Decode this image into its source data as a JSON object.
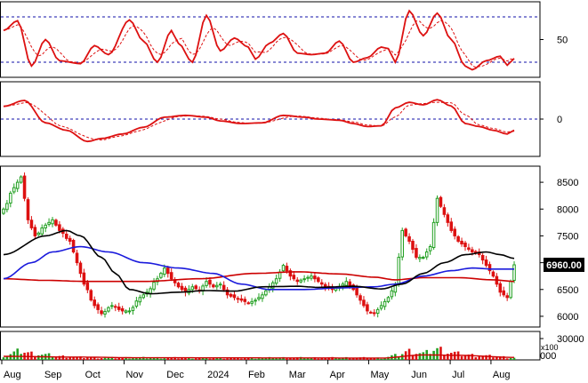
{
  "chart_data": {
    "type": "candlestick",
    "panels": [
      {
        "id": "oscillator",
        "ylim": [
          0,
          100
        ],
        "yticks": [
          {
            "v": 50,
            "label": "50"
          }
        ],
        "reference_lines": [
          80,
          20
        ]
      },
      {
        "id": "momentum",
        "ylim": [
          -100,
          100
        ],
        "yticks": [
          {
            "v": 0,
            "label": "0"
          }
        ],
        "reference_lines": [
          0
        ]
      },
      {
        "id": "price",
        "ylim": [
          5800,
          8800
        ],
        "yticks": [
          {
            "v": 8500,
            "label": "8500"
          },
          {
            "v": 8000,
            "label": "8000"
          },
          {
            "v": 7500,
            "label": "7500"
          },
          {
            "v": 7000,
            "label": "7000"
          },
          {
            "v": 6500,
            "label": "6500"
          },
          {
            "v": 6000,
            "label": "6000"
          }
        ],
        "last_price": "6960.00"
      },
      {
        "id": "volume",
        "ylim": [
          0,
          40000
        ],
        "yticks": [
          {
            "v": 30000,
            "label": "30000"
          }
        ],
        "unit_label": "x100",
        "zero_label": "000"
      }
    ],
    "x_labels": [
      "Aug",
      "Sep",
      "Oct",
      "Nov",
      "Dec",
      "2024",
      "Feb",
      "Mar",
      "Apr",
      "May",
      "Jun",
      "Jul",
      "Aug"
    ],
    "oscillator_anchors": [
      [
        0,
        62
      ],
      [
        4,
        75
      ],
      [
        8,
        15
      ],
      [
        12,
        50
      ],
      [
        16,
        22
      ],
      [
        22,
        18
      ],
      [
        26,
        42
      ],
      [
        30,
        30
      ],
      [
        36,
        76
      ],
      [
        40,
        48
      ],
      [
        44,
        20
      ],
      [
        48,
        62
      ],
      [
        50,
        45
      ],
      [
        54,
        20
      ],
      [
        58,
        82
      ],
      [
        62,
        35
      ],
      [
        66,
        52
      ],
      [
        70,
        40
      ],
      [
        72,
        24
      ],
      [
        76,
        45
      ],
      [
        80,
        58
      ],
      [
        84,
        32
      ],
      [
        88,
        30
      ],
      [
        92,
        32
      ],
      [
        96,
        48
      ],
      [
        100,
        20
      ],
      [
        104,
        26
      ],
      [
        108,
        40
      ],
      [
        110,
        38
      ],
      [
        112,
        20
      ],
      [
        116,
        88
      ],
      [
        120,
        55
      ],
      [
        124,
        85
      ],
      [
        128,
        50
      ],
      [
        132,
        15
      ],
      [
        134,
        10
      ],
      [
        138,
        22
      ],
      [
        142,
        28
      ],
      [
        144,
        16
      ],
      [
        146,
        25
      ]
    ],
    "momentum_anchors": [
      [
        0,
        34
      ],
      [
        6,
        50
      ],
      [
        12,
        -10
      ],
      [
        18,
        -30
      ],
      [
        24,
        -60
      ],
      [
        28,
        -52
      ],
      [
        34,
        -40
      ],
      [
        40,
        -22
      ],
      [
        46,
        5
      ],
      [
        52,
        10
      ],
      [
        58,
        5
      ],
      [
        62,
        -5
      ],
      [
        68,
        -12
      ],
      [
        74,
        -10
      ],
      [
        80,
        10
      ],
      [
        86,
        5
      ],
      [
        90,
        0
      ],
      [
        96,
        -3
      ],
      [
        100,
        -12
      ],
      [
        104,
        -20
      ],
      [
        108,
        -18
      ],
      [
        112,
        30
      ],
      [
        116,
        45
      ],
      [
        120,
        38
      ],
      [
        124,
        52
      ],
      [
        128,
        35
      ],
      [
        132,
        -12
      ],
      [
        136,
        -20
      ],
      [
        140,
        -30
      ],
      [
        144,
        -40
      ],
      [
        146,
        -30
      ]
    ],
    "price_anchors": [
      [
        0,
        8000
      ],
      [
        3,
        8400
      ],
      [
        5,
        8600
      ],
      [
        7,
        7800
      ],
      [
        9,
        7500
      ],
      [
        12,
        7700
      ],
      [
        14,
        7800
      ],
      [
        16,
        7600
      ],
      [
        19,
        7400
      ],
      [
        21,
        7000
      ],
      [
        23,
        6600
      ],
      [
        26,
        6200
      ],
      [
        28,
        6050
      ],
      [
        31,
        6200
      ],
      [
        34,
        6100
      ],
      [
        36,
        6100
      ],
      [
        39,
        6350
      ],
      [
        41,
        6450
      ],
      [
        44,
        6700
      ],
      [
        46,
        6900
      ],
      [
        48,
        6700
      ],
      [
        50,
        6550
      ],
      [
        52,
        6450
      ],
      [
        54,
        6550
      ],
      [
        56,
        6480
      ],
      [
        58,
        6650
      ],
      [
        60,
        6550
      ],
      [
        62,
        6600
      ],
      [
        64,
        6400
      ],
      [
        66,
        6350
      ],
      [
        68,
        6300
      ],
      [
        70,
        6250
      ],
      [
        72,
        6300
      ],
      [
        74,
        6400
      ],
      [
        76,
        6550
      ],
      [
        78,
        6700
      ],
      [
        80,
        6950
      ],
      [
        82,
        6750
      ],
      [
        84,
        6650
      ],
      [
        86,
        6700
      ],
      [
        88,
        6750
      ],
      [
        90,
        6650
      ],
      [
        92,
        6550
      ],
      [
        94,
        6500
      ],
      [
        96,
        6550
      ],
      [
        98,
        6650
      ],
      [
        100,
        6500
      ],
      [
        102,
        6300
      ],
      [
        104,
        6100
      ],
      [
        106,
        6050
      ],
      [
        108,
        6200
      ],
      [
        110,
        6350
      ],
      [
        112,
        6600
      ],
      [
        114,
        7600
      ],
      [
        116,
        7400
      ],
      [
        118,
        7100
      ],
      [
        120,
        7100
      ],
      [
        122,
        7300
      ],
      [
        124,
        8200
      ],
      [
        126,
        7900
      ],
      [
        128,
        7600
      ],
      [
        130,
        7400
      ],
      [
        132,
        7300
      ],
      [
        134,
        7200
      ],
      [
        136,
        7150
      ],
      [
        138,
        6950
      ],
      [
        140,
        6750
      ],
      [
        142,
        6450
      ],
      [
        144,
        6350
      ],
      [
        146,
        6960
      ]
    ],
    "ma_black": [
      [
        0,
        7150
      ],
      [
        12,
        7500
      ],
      [
        18,
        7600
      ],
      [
        22,
        7500
      ],
      [
        28,
        7100
      ],
      [
        32,
        6800
      ],
      [
        36,
        6500
      ],
      [
        42,
        6420
      ],
      [
        50,
        6450
      ],
      [
        58,
        6480
      ],
      [
        66,
        6470
      ],
      [
        74,
        6550
      ],
      [
        84,
        6560
      ],
      [
        90,
        6540
      ],
      [
        100,
        6560
      ],
      [
        108,
        6510
      ],
      [
        114,
        6600
      ],
      [
        120,
        6800
      ],
      [
        126,
        7000
      ],
      [
        132,
        7150
      ],
      [
        138,
        7200
      ],
      [
        142,
        7150
      ],
      [
        146,
        7080
      ]
    ],
    "ma_blue": [
      [
        0,
        6700
      ],
      [
        8,
        7000
      ],
      [
        14,
        7200
      ],
      [
        22,
        7300
      ],
      [
        30,
        7200
      ],
      [
        40,
        7000
      ],
      [
        50,
        6900
      ],
      [
        60,
        6800
      ],
      [
        68,
        6600
      ],
      [
        76,
        6500
      ],
      [
        86,
        6500
      ],
      [
        96,
        6530
      ],
      [
        106,
        6550
      ],
      [
        112,
        6600
      ],
      [
        120,
        6750
      ],
      [
        128,
        6850
      ],
      [
        134,
        6900
      ],
      [
        140,
        6880
      ],
      [
        146,
        6880
      ]
    ],
    "ma_red": [
      [
        0,
        6700
      ],
      [
        12,
        6670
      ],
      [
        24,
        6650
      ],
      [
        40,
        6650
      ],
      [
        56,
        6700
      ],
      [
        72,
        6800
      ],
      [
        84,
        6830
      ],
      [
        96,
        6790
      ],
      [
        106,
        6730
      ],
      [
        112,
        6680
      ],
      [
        120,
        6720
      ],
      [
        130,
        6720
      ],
      [
        140,
        6680
      ],
      [
        146,
        6650
      ]
    ],
    "volume_anchors": [
      [
        0,
        6000
      ],
      [
        5,
        12000
      ],
      [
        8,
        9000
      ],
      [
        12,
        7000
      ],
      [
        16,
        5000
      ],
      [
        22,
        3500
      ],
      [
        30,
        3000
      ],
      [
        40,
        3000
      ],
      [
        50,
        2800
      ],
      [
        60,
        2500
      ],
      [
        70,
        2500
      ],
      [
        80,
        3000
      ],
      [
        90,
        2800
      ],
      [
        100,
        3000
      ],
      [
        108,
        2500
      ],
      [
        112,
        6000
      ],
      [
        116,
        12000
      ],
      [
        120,
        9000
      ],
      [
        124,
        15000
      ],
      [
        128,
        10000
      ],
      [
        132,
        7000
      ],
      [
        136,
        6000
      ],
      [
        140,
        5000
      ],
      [
        146,
        3000
      ]
    ],
    "volume_ma": [
      [
        0,
        5000
      ],
      [
        20,
        4000
      ],
      [
        40,
        3000
      ],
      [
        80,
        2800
      ],
      [
        108,
        2600
      ],
      [
        120,
        7000
      ],
      [
        130,
        6500
      ],
      [
        146,
        3500
      ]
    ],
    "candle_count": 147,
    "colors": {
      "up": "#22a022",
      "down": "#dd1111",
      "grid_ref": "#1010aa",
      "osc_line": "#dd1111",
      "ma_black": "#000000",
      "ma_blue": "#1a1adc",
      "ma_red": "#cc0000",
      "badge_bg": "#000000",
      "volume_ma": "#cc0000"
    }
  }
}
